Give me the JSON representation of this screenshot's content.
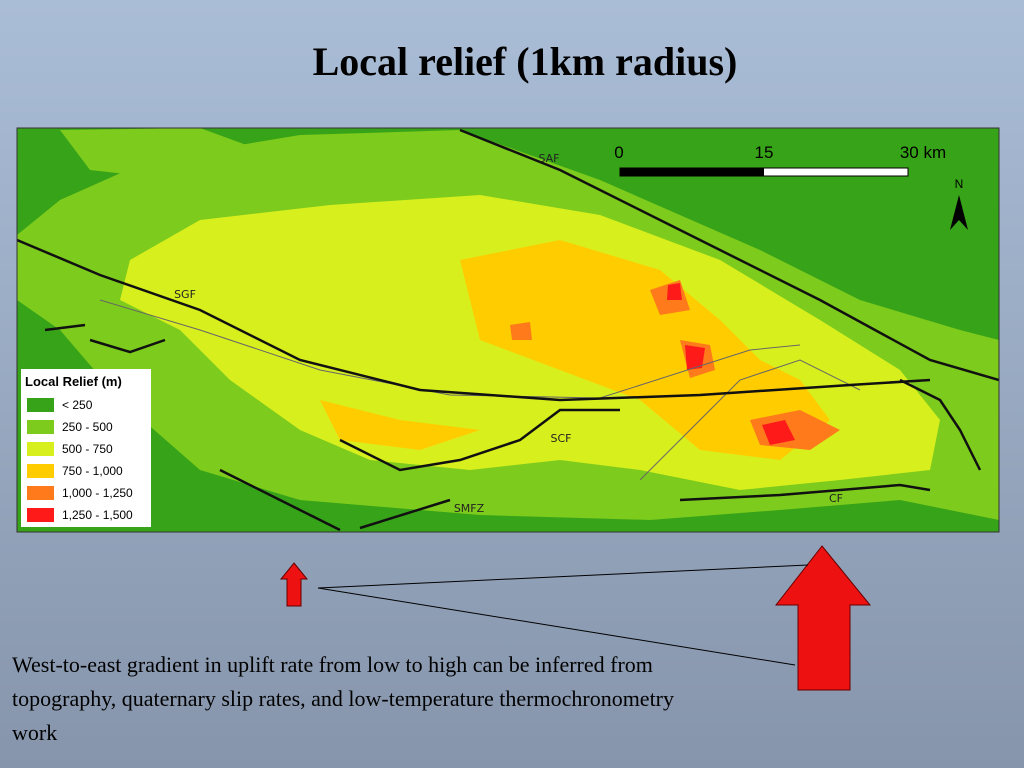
{
  "title": "Local relief (1km radius)",
  "map": {
    "scale_bar": {
      "labels": [
        "0",
        "15",
        "30 km"
      ]
    },
    "north": "N",
    "fault_labels": [
      "SAF",
      "SGF",
      "SCF",
      "SMFZ",
      "CF"
    ],
    "legend": {
      "title": "Local Relief (m)",
      "items": [
        {
          "label": "< 250",
          "color": "#37a318"
        },
        {
          "label": "250 - 500",
          "color": "#7dcb1c"
        },
        {
          "label": "500 - 750",
          "color": "#d8ef1e"
        },
        {
          "label": "750 - 1,000",
          "color": "#ffcc00"
        },
        {
          "label": "1,000 - 1,250",
          "color": "#ff7a1a"
        },
        {
          "label": "1,250 - 1,500",
          "color": "#ff1a1a"
        }
      ]
    }
  },
  "caption": "West-to-east gradient in uplift rate from low to high can be inferred from topography, quaternary slip rates, and low-temperature thermochronometry work"
}
